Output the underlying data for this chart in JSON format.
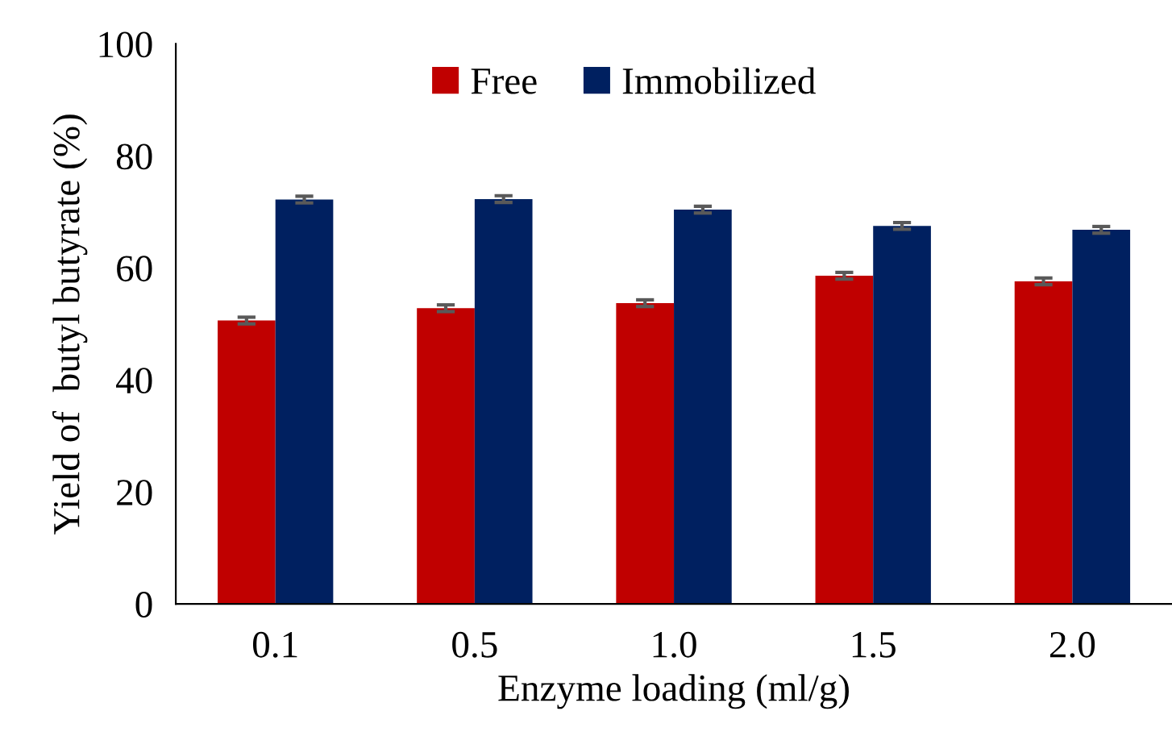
{
  "chart_data": {
    "type": "bar",
    "xlabel": "Enzyme loading (ml/g)",
    "ylabel": "Yield of  butyl butyrate (%)",
    "categories": [
      "0.1",
      "0.5",
      "1.0",
      "1.5",
      "2.0"
    ],
    "series": [
      {
        "name": "Free",
        "color": "#c00000",
        "values": [
          50.6,
          52.8,
          53.7,
          58.6,
          57.6
        ],
        "errors": [
          0.6,
          0.6,
          0.6,
          0.6,
          0.6
        ]
      },
      {
        "name": "Immobilized",
        "color": "#002060",
        "values": [
          72.2,
          72.3,
          70.4,
          67.5,
          66.8
        ],
        "errors": [
          0.6,
          0.6,
          0.6,
          0.6,
          0.6
        ]
      }
    ],
    "ylim": [
      0,
      100
    ],
    "yticks": [
      0,
      20,
      40,
      60,
      80,
      100
    ],
    "grid": false,
    "legend": "top"
  }
}
